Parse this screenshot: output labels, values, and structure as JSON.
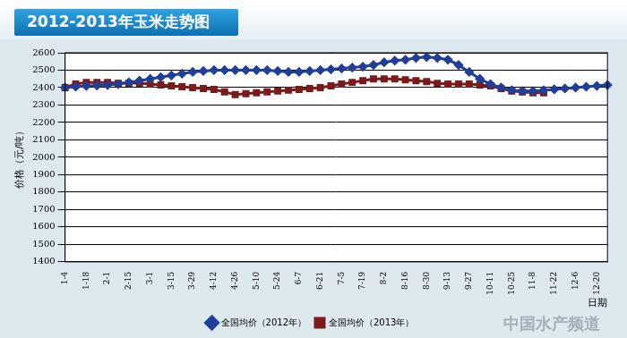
{
  "chart_data": {
    "type": "line",
    "title": "2012-2013年玉米走势图",
    "y_label": "价格（元/吨）",
    "x_label": "日期",
    "annotations": [
      "中国水产频道"
    ],
    "categories": [
      "1-4",
      null,
      "1-18",
      null,
      "2-1",
      null,
      "2-15",
      null,
      "3-1",
      null,
      "3-15",
      null,
      "3-29",
      null,
      "4-12",
      null,
      "4-26",
      null,
      "5-10",
      null,
      "5-24",
      null,
      "6-7",
      null,
      "6-21",
      null,
      "7-5",
      null,
      "7-19",
      null,
      "8-2",
      null,
      "8-16",
      null,
      "8-30",
      null,
      "9-13",
      null,
      "9-27",
      null,
      "10-11",
      null,
      "10-25",
      null,
      "11-8",
      null,
      "11-22",
      null,
      "12-6",
      null,
      "12-20",
      null
    ],
    "series": [
      {
        "name": "全国均价（2012年）",
        "color": "#1f3f9a",
        "marker": "diamond",
        "line_style": "solid",
        "values": [
          2400,
          2405,
          2410,
          2412,
          2415,
          2420,
          2430,
          2440,
          2450,
          2460,
          2470,
          2480,
          2490,
          2495,
          2500,
          2500,
          2500,
          2500,
          2500,
          2500,
          2495,
          2490,
          2490,
          2495,
          2500,
          2505,
          2510,
          2515,
          2520,
          2530,
          2545,
          2555,
          2560,
          2570,
          2575,
          2570,
          2560,
          2530,
          2490,
          2450,
          2420,
          2400,
          2385,
          2380,
          2380,
          2385,
          2390,
          2395,
          2400,
          2405,
          2410,
          2415
        ]
      },
      {
        "name": "全国均价（2013年）",
        "color": "#7a1a1a",
        "marker": "square",
        "line_style": "solid",
        "values": [
          2400,
          2420,
          2430,
          2430,
          2430,
          2425,
          2425,
          2425,
          2420,
          2415,
          2410,
          2405,
          2400,
          2395,
          2390,
          2375,
          2360,
          2365,
          2370,
          2375,
          2380,
          2385,
          2390,
          2395,
          2400,
          2410,
          2420,
          2430,
          2440,
          2450,
          2450,
          2450,
          2445,
          2440,
          2435,
          2425,
          2420,
          2420,
          2420,
          2415,
          2410,
          2395,
          2380,
          2375,
          2370,
          2370,
          null,
          null,
          null,
          null,
          null,
          null
        ]
      }
    ],
    "ylim": [
      1400,
      2600
    ],
    "yticks": [
      1400,
      1500,
      1600,
      1700,
      1800,
      1900,
      2000,
      2100,
      2200,
      2300,
      2400,
      2500,
      2600
    ],
    "grid": true,
    "legend": "bottom"
  }
}
